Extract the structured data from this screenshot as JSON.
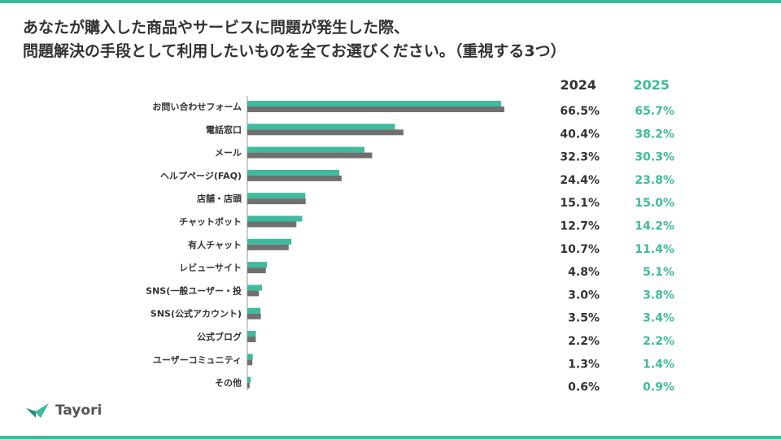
{
  "title": {
    "line1": "あなたが購入した商品やサービスに問題が発生した際、",
    "line2": "問題解決の手段として利用したいものを全てお選びください。（重視する3つ）"
  },
  "chart_data": {
    "type": "bar",
    "orientation": "horizontal",
    "categories": [
      "お問い合わせフォーム",
      "電話窓口",
      "メール",
      "ヘルプページ(FAQ)",
      "店舗・店頭",
      "チャットボット",
      "有人チャット",
      "レビューサイト",
      "SNS(一般ユーザー・投",
      "SNS(公式アカウント)",
      "公式ブログ",
      "ユーザーコミュニティ",
      "その他"
    ],
    "series": [
      {
        "name": "2024",
        "color": "#707070",
        "values": [
          66.5,
          40.4,
          32.3,
          24.4,
          15.1,
          12.7,
          10.7,
          4.8,
          3.0,
          3.5,
          2.2,
          1.3,
          0.6
        ],
        "labels": [
          "66.5%",
          "40.4%",
          "32.3%",
          "24.4%",
          "15.1%",
          "12.7%",
          "10.7%",
          "4.8%",
          "3.0%",
          "3.5%",
          "2.2%",
          "1.3%",
          "0.6%"
        ]
      },
      {
        "name": "2025",
        "color": "#3dbb9c",
        "values": [
          65.7,
          38.2,
          30.3,
          23.8,
          15.0,
          14.2,
          11.4,
          5.1,
          3.8,
          3.4,
          2.2,
          1.4,
          0.9
        ],
        "labels": [
          "65.7%",
          "38.2%",
          "30.3%",
          "23.8%",
          "15.0%",
          "14.2%",
          "11.4%",
          "5.1%",
          "3.8%",
          "3.4%",
          "2.2%",
          "1.4%",
          "0.9%"
        ]
      }
    ],
    "xlim": [
      0,
      100
    ],
    "grid": false,
    "legend": "top-right"
  },
  "logo": {
    "text": "Tayori"
  },
  "colors": {
    "accent": "#3dbb9c",
    "gray": "#707070"
  }
}
